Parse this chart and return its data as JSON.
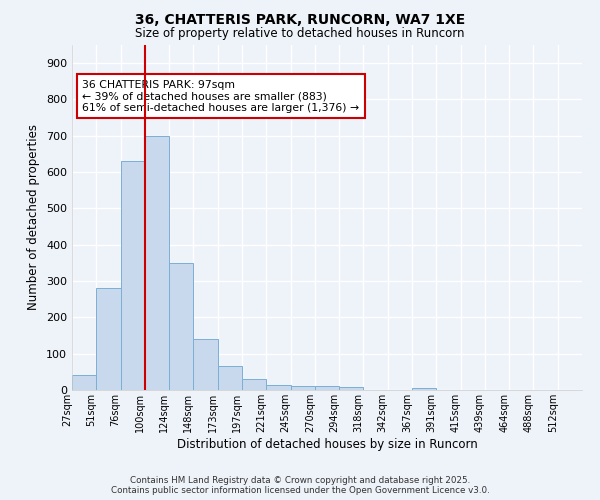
{
  "title1": "36, CHATTERIS PARK, RUNCORN, WA7 1XE",
  "title2": "Size of property relative to detached houses in Runcorn",
  "xlabel": "Distribution of detached houses by size in Runcorn",
  "ylabel": "Number of detached properties",
  "categories": [
    "27sqm",
    "51sqm",
    "76sqm",
    "100sqm",
    "124sqm",
    "148sqm",
    "173sqm",
    "197sqm",
    "221sqm",
    "245sqm",
    "270sqm",
    "294sqm",
    "318sqm",
    "342sqm",
    "367sqm",
    "391sqm",
    "415sqm",
    "439sqm",
    "464sqm",
    "488sqm",
    "512sqm"
  ],
  "values": [
    40,
    280,
    630,
    700,
    350,
    140,
    65,
    30,
    15,
    12,
    10,
    8,
    0,
    0,
    5,
    0,
    0,
    0,
    0,
    0,
    0
  ],
  "bar_color": "#c9d9ed",
  "bar_edge_color": "#7bafd4",
  "vline_index": 3.0,
  "vline_color": "#cc0000",
  "annotation_text": "36 CHATTERIS PARK: 97sqm\n← 39% of detached houses are smaller (883)\n61% of semi-detached houses are larger (1,376) →",
  "annotation_box_color": "#ffffff",
  "annotation_box_edge_color": "#cc0000",
  "ylim": [
    0,
    950
  ],
  "yticks": [
    0,
    100,
    200,
    300,
    400,
    500,
    600,
    700,
    800,
    900
  ],
  "footer1": "Contains HM Land Registry data © Crown copyright and database right 2025.",
  "footer2": "Contains public sector information licensed under the Open Government Licence v3.0.",
  "bg_color": "#eef2f9",
  "plot_bg_color": "#eef2f9",
  "grid_color": "#ffffff"
}
